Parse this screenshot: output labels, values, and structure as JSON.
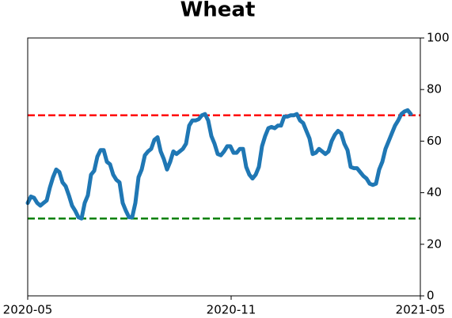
{
  "chart_data": {
    "type": "line",
    "title": "Wheat",
    "series": [
      {
        "color": "#1f77b4",
        "values": [
          36,
          38.5,
          38,
          36,
          35,
          36,
          37,
          42,
          46,
          49,
          48,
          44,
          42.5,
          39,
          35,
          33,
          30.5,
          30,
          36,
          39,
          47,
          48.5,
          54,
          56.5,
          56.5,
          52,
          51,
          47,
          45,
          44,
          36,
          33,
          30.5,
          30.5,
          36,
          46,
          49,
          54.5,
          56,
          57,
          60.5,
          61.5,
          56,
          53,
          49,
          52,
          56,
          55,
          56,
          57,
          59,
          66,
          68,
          68,
          68.5,
          70,
          70.5,
          68,
          62,
          59,
          55,
          54.5,
          56,
          58,
          58,
          55.5,
          55.5,
          57,
          57,
          50,
          47,
          45.5,
          47,
          50,
          58,
          62,
          65,
          65.5,
          65,
          66,
          66,
          69.5,
          69.5,
          70,
          70,
          70.5,
          68,
          67,
          64,
          61,
          55,
          55.5,
          57,
          56,
          55,
          56,
          60,
          62.5,
          64,
          63,
          59,
          56.5,
          50,
          49.5,
          49.5,
          48,
          46.5,
          45.5,
          43.5,
          43,
          43.5,
          49,
          52,
          57,
          60,
          63,
          66,
          68,
          70.5,
          71.5,
          72,
          70.5
        ]
      }
    ],
    "xlim": [
      0,
      124
    ],
    "xticks": [
      {
        "value": 0,
        "label": "2020-05"
      },
      {
        "value": 64.25,
        "label": "2020-11"
      },
      {
        "value": 124,
        "label": "2021-05"
      }
    ],
    "ylim": [
      0,
      100
    ],
    "yticks": [
      0,
      20,
      40,
      60,
      80,
      100
    ],
    "y_axis_side": "right",
    "hlines": [
      {
        "value": 70,
        "color": "#ff0000"
      },
      {
        "value": 30,
        "color": "#008000"
      }
    ]
  }
}
